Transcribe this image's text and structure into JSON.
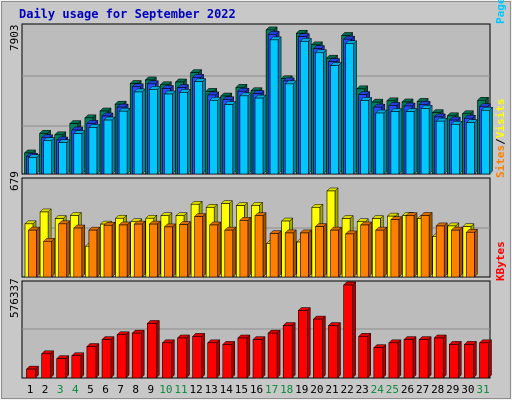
{
  "chart_data": {
    "type": "bar",
    "title": "Daily usage for September 2022",
    "categories": [
      "1",
      "2",
      "3",
      "4",
      "5",
      "6",
      "7",
      "8",
      "9",
      "10",
      "11",
      "12",
      "13",
      "14",
      "15",
      "16",
      "17",
      "18",
      "19",
      "20",
      "21",
      "22",
      "23",
      "24",
      "25",
      "26",
      "27",
      "28",
      "29",
      "30",
      "31"
    ],
    "weekend_days": [
      "3",
      "4",
      "10",
      "11",
      "17",
      "18",
      "24",
      "25",
      "31"
    ],
    "panels": [
      {
        "key": "top",
        "max_label": "7903",
        "ylim": [
          0,
          7903
        ],
        "legend": [
          {
            "text": "Pages",
            "color": "#00c8ff"
          },
          {
            "text": "/",
            "color": "#000000"
          },
          {
            "text": "Files",
            "color": "#0040ff"
          },
          {
            "text": "/",
            "color": "#000000"
          },
          {
            "text": "Hits",
            "color": "#008040"
          }
        ],
        "series": [
          {
            "name": "Hits",
            "color": "#00805c",
            "values": [
              1140,
              2200,
              2120,
              2730,
              3040,
              3410,
              3780,
              4900,
              5090,
              4830,
              4980,
              5490,
              4470,
              4220,
              4690,
              4510,
              7800,
              5160,
              7620,
              6990,
              6270,
              7500,
              4610,
              3890,
              3960,
              3900,
              3930,
              3320,
              3150,
              3260,
              3990
            ]
          },
          {
            "name": "Files",
            "color": "#2a4cff",
            "values": [
              960,
              1960,
              1840,
              2380,
              2740,
              3140,
              3620,
              4720,
              4880,
              4630,
              4680,
              5230,
              4280,
              4020,
              4480,
              4350,
              7560,
              5040,
              7440,
              6790,
              6090,
              7300,
              4300,
              3620,
              3710,
              3680,
              3770,
              3090,
              2920,
              3020,
              3640
            ]
          },
          {
            "name": "Pages",
            "color": "#00c8ff",
            "values": [
              880,
              1800,
              1700,
              2190,
              2520,
              2920,
              3400,
              4440,
              4580,
              4330,
              4420,
              5000,
              3990,
              3760,
              4230,
              4110,
              7260,
              4880,
              7180,
              6560,
              5870,
              7050,
              3980,
              3300,
              3380,
              3380,
              3550,
              2860,
              2690,
              2780,
              3450
            ]
          }
        ]
      },
      {
        "key": "middle",
        "max_label": "679",
        "ylim": [
          0,
          679
        ],
        "legend": [
          {
            "text": "Sites",
            "color": "#ff8000"
          },
          {
            "text": "/",
            "color": "#000000"
          },
          {
            "text": "Visits",
            "color": "#ffff00"
          }
        ],
        "series": [
          {
            "name": "Visits",
            "color": "#ffff00",
            "values": [
              380,
              465,
              418,
              440,
              220,
              378,
              420,
              395,
              420,
              438,
              438,
              520,
              498,
              525,
              510,
              512,
              240,
              400,
              250,
              498,
              615,
              418,
              395,
              418,
              435,
              440,
              418,
              290,
              365,
              360,
              0
            ]
          },
          {
            "name": "Sites",
            "color": "#ff8000",
            "values": [
              335,
              255,
              380,
              350,
              335,
              370,
              372,
              378,
              378,
              358,
              375,
              432,
              372,
              335,
              405,
              438,
              310,
              315,
              315,
              360,
              335,
              308,
              372,
              335,
              410,
              438,
              440,
              365,
              335,
              320,
              0
            ]
          }
        ]
      },
      {
        "key": "bottom",
        "max_label": "576337",
        "ylim": [
          0,
          576337
        ],
        "legend": [
          {
            "text": "KBytes",
            "color": "#ff0000"
          }
        ],
        "series": [
          {
            "name": "KBytes",
            "color": "#ff0000",
            "values": [
              55000,
              150000,
              120000,
              138000,
              195000,
              238000,
              268000,
              278000,
              338000,
              218000,
              248000,
              258000,
              218000,
              208000,
              248000,
              238000,
              278000,
              325000,
              418000,
              365000,
              325000,
              576337,
              258000,
              188000,
              218000,
              238000,
              238000,
              248000,
              208000,
              208000,
              218000
            ]
          }
        ]
      }
    ]
  }
}
